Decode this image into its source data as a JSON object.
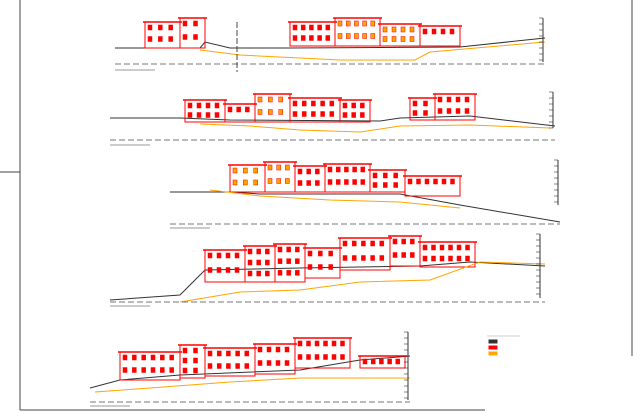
{
  "legend": {
    "colors": [
      "#333333",
      "#ff0000",
      "#ffa500"
    ]
  }
}
